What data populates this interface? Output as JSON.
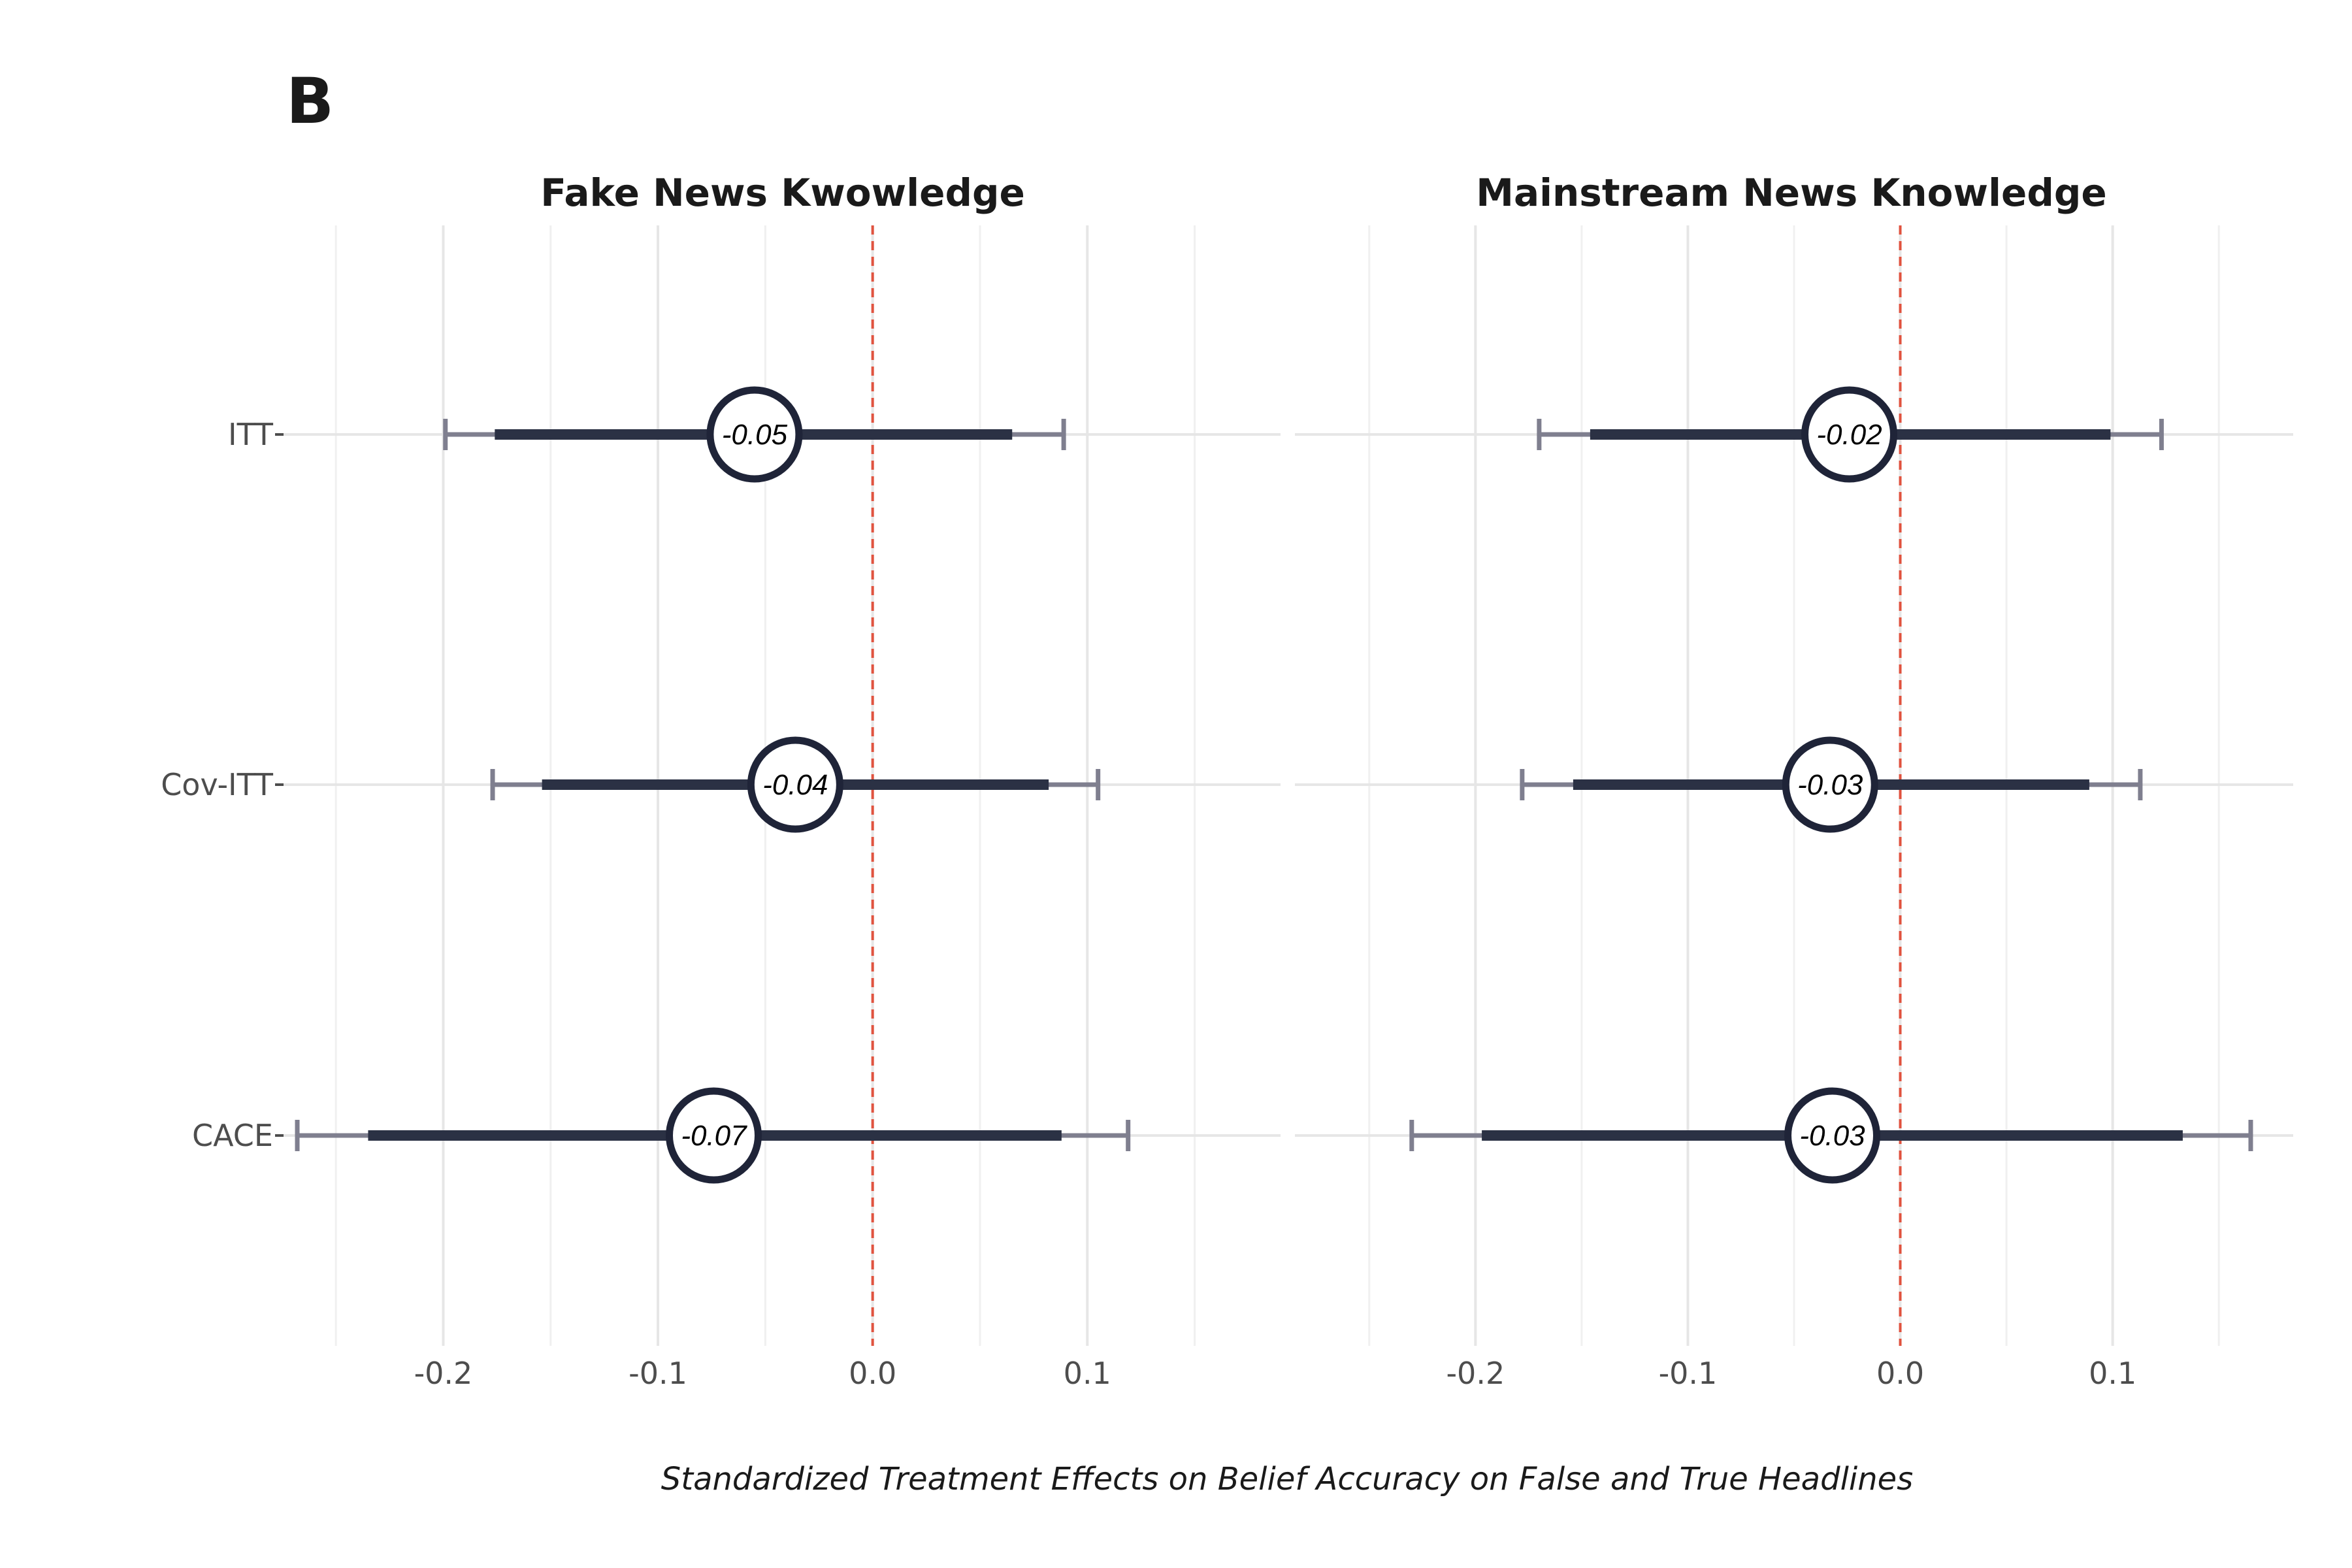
{
  "panel_label": "B",
  "colors": {
    "point": "#1f2438",
    "inner_ci": "#2b3144",
    "outer_ci": "#7f7f8f",
    "zero_line": "#e0533f",
    "grid": "#e6e6e6",
    "background": "#ffffff"
  },
  "chart_data": {
    "type": "forest",
    "xlabel": "Standardized Treatment Effects on Belief Accuracy on False and True Headlines",
    "categories": [
      "ITT",
      "Cov-ITT",
      "CACE"
    ],
    "x_ticks": [
      -0.2,
      -0.1,
      0.0,
      0.1
    ],
    "x_tick_labels": [
      "-0.2",
      "-0.1",
      "0.0",
      "0.1"
    ],
    "grid": true,
    "reference_line": 0.0,
    "panels": [
      {
        "title": "Fake News Kwowledge",
        "xlim": [
          -0.275,
          0.19
        ],
        "series": [
          {
            "category": "ITT",
            "estimate": -0.055,
            "label": "-0.05",
            "ci90": [
              -0.176,
              0.065
            ],
            "ci95": [
              -0.199,
              0.089
            ]
          },
          {
            "category": "Cov-ITT",
            "estimate": -0.036,
            "label": "-0.04",
            "ci90": [
              -0.154,
              0.082
            ],
            "ci95": [
              -0.177,
              0.105
            ]
          },
          {
            "category": "CACE",
            "estimate": -0.074,
            "label": "-0.07",
            "ci90": [
              -0.235,
              0.088
            ],
            "ci95": [
              -0.268,
              0.119
            ]
          }
        ]
      },
      {
        "title": "Mainstream News Knowledge",
        "xlim": [
          -0.285,
          0.185
        ],
        "series": [
          {
            "category": "ITT",
            "estimate": -0.024,
            "label": "-0.02",
            "ci90": [
              -0.146,
              0.099
            ],
            "ci95": [
              -0.17,
              0.123
            ]
          },
          {
            "category": "Cov-ITT",
            "estimate": -0.033,
            "label": "-0.03",
            "ci90": [
              -0.154,
              0.089
            ],
            "ci95": [
              -0.178,
              0.113
            ]
          },
          {
            "category": "CACE",
            "estimate": -0.032,
            "label": "-0.03",
            "ci90": [
              -0.197,
              0.133
            ],
            "ci95": [
              -0.23,
              0.165
            ]
          }
        ]
      }
    ]
  }
}
